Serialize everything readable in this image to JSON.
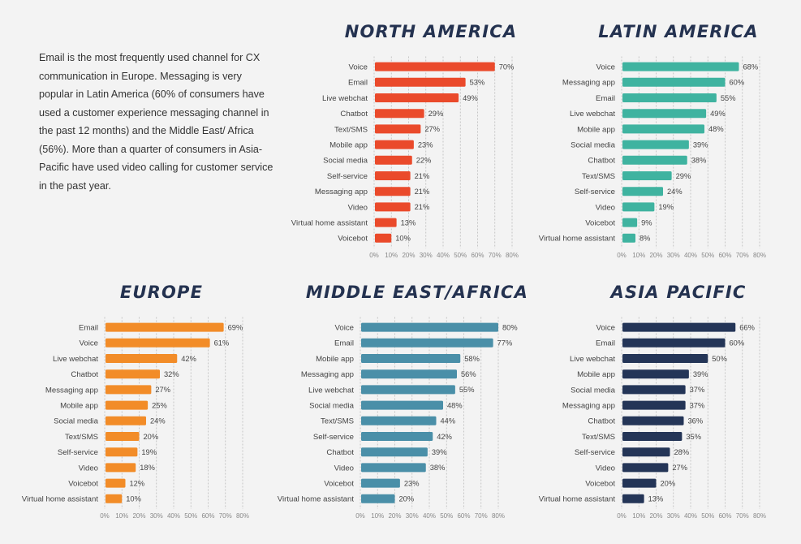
{
  "intro_text": "Email is the most frequently used channel for CX communication in Europe. Messaging is very popular in Latin America (60% of consumers have used a customer experience messaging channel in the past 12 months) and the Middle East/ Africa (56%). More than a quarter of consumers in Asia-Pacific have used video calling for customer service in the past year.",
  "chart_data": [
    {
      "type": "bar",
      "orientation": "horizontal",
      "title": "NORTH AMERICA",
      "color": "#ea4a2b",
      "categories": [
        "Voice",
        "Email",
        "Live webchat",
        "Chatbot",
        "Text/SMS",
        "Mobile app",
        "Social media",
        "Self-service",
        "Messaging app",
        "Video",
        "Virtual home assistant",
        "Voicebot"
      ],
      "values": [
        70,
        53,
        49,
        29,
        27,
        23,
        22,
        21,
        21,
        21,
        13,
        10
      ],
      "xlim": [
        0,
        80
      ],
      "ticks": [
        "0%",
        "10%",
        "20%",
        "30%",
        "40%",
        "50%",
        "60%",
        "70%",
        "80%"
      ],
      "grid": true
    },
    {
      "type": "bar",
      "orientation": "horizontal",
      "title": "LATIN AMERICA",
      "color": "#3fb3a0",
      "categories": [
        "Voice",
        "Messaging app",
        "Email",
        "Live webchat",
        "Mobile app",
        "Social media",
        "Chatbot",
        "Text/SMS",
        "Self-service",
        "Video",
        "Voicebot",
        "Virtual home assistant"
      ],
      "values": [
        68,
        60,
        55,
        49,
        48,
        39,
        38,
        29,
        24,
        19,
        9,
        8
      ],
      "xlim": [
        0,
        80
      ],
      "ticks": [
        "0%",
        "10%",
        "20%",
        "30%",
        "40%",
        "50%",
        "60%",
        "70%",
        "80%"
      ],
      "grid": true
    },
    {
      "type": "bar",
      "orientation": "horizontal",
      "title": "EUROPE",
      "color": "#f28c28",
      "categories": [
        "Email",
        "Voice",
        "Live webchat",
        "Chatbot",
        "Messaging app",
        "Mobile app",
        "Social media",
        "Text/SMS",
        "Self-service",
        "Video",
        "Voicebot",
        "Virtual home assistant"
      ],
      "values": [
        69,
        61,
        42,
        32,
        27,
        25,
        24,
        20,
        19,
        18,
        12,
        10
      ],
      "xlim": [
        0,
        80
      ],
      "ticks": [
        "0%",
        "10%",
        "20%",
        "30%",
        "40%",
        "50%",
        "60%",
        "70%",
        "80%"
      ],
      "grid": true
    },
    {
      "type": "bar",
      "orientation": "horizontal",
      "title": "MIDDLE EAST/AFRICA",
      "color": "#4a8fa8",
      "categories": [
        "Voice",
        "Email",
        "Mobile app",
        "Messaging app",
        "Live webchat",
        "Social media",
        "Text/SMS",
        "Self-service",
        "Chatbot",
        "Video",
        "Voicebot",
        "Virtual home assistant"
      ],
      "values": [
        80,
        77,
        58,
        56,
        55,
        48,
        44,
        42,
        39,
        38,
        23,
        20
      ],
      "xlim": [
        0,
        80
      ],
      "ticks": [
        "0%",
        "10%",
        "20%",
        "30%",
        "40%",
        "50%",
        "60%",
        "70%",
        "80%"
      ],
      "grid": true
    },
    {
      "type": "bar",
      "orientation": "horizontal",
      "title": "ASIA PACIFIC",
      "color": "#243557",
      "categories": [
        "Voice",
        "Email",
        "Live webchat",
        "Mobile app",
        "Social media",
        "Messaging app",
        "Chatbot",
        "Text/SMS",
        "Self-service",
        "Video",
        "Voicebot",
        "Virtual home assistant"
      ],
      "values": [
        66,
        60,
        50,
        39,
        37,
        37,
        36,
        35,
        28,
        27,
        20,
        13
      ],
      "xlim": [
        0,
        80
      ],
      "ticks": [
        "0%",
        "10%",
        "20%",
        "30%",
        "40%",
        "50%",
        "60%",
        "70%",
        "80%"
      ],
      "grid": true
    }
  ]
}
